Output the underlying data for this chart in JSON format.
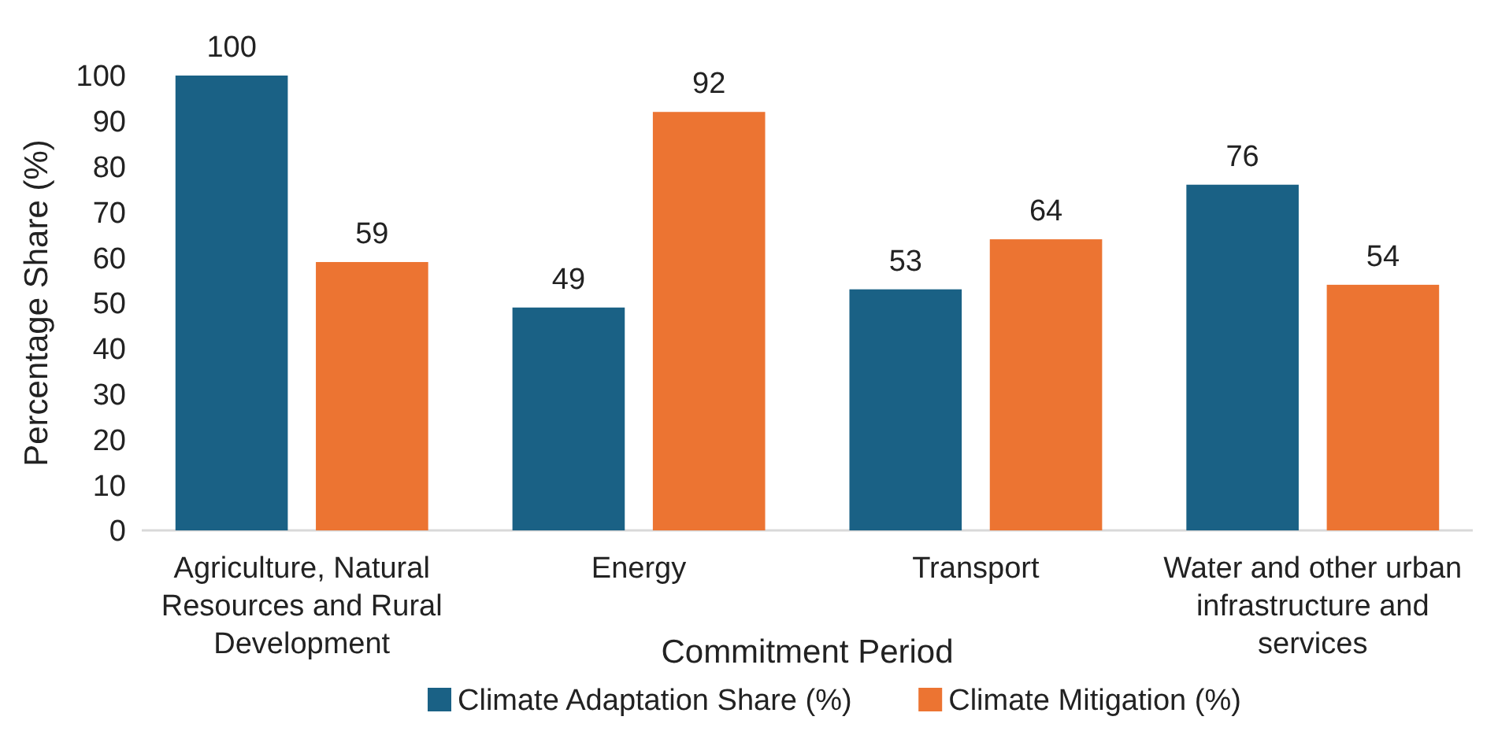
{
  "chart_data": {
    "type": "bar",
    "xlabel": "Commitment Period",
    "ylabel": "Percentage Share (%)",
    "categories": [
      "Agriculture, Natural Resources and Rural Development",
      "Energy",
      "Transport",
      "Water and other urban infrastructure and services"
    ],
    "series": [
      {
        "name": "Climate Adaptation Share (%)",
        "color": "#1a6185",
        "values": [
          100,
          49,
          53,
          76
        ]
      },
      {
        "name": "Climate Mitigation (%)",
        "color": "#ec7432",
        "values": [
          59,
          92,
          64,
          54
        ]
      }
    ],
    "ylim": [
      0,
      100
    ],
    "yticks": [
      0,
      10,
      20,
      30,
      40,
      50,
      60,
      70,
      80,
      90,
      100
    ],
    "data_labels": true,
    "legend": "bottom",
    "grid": false
  }
}
